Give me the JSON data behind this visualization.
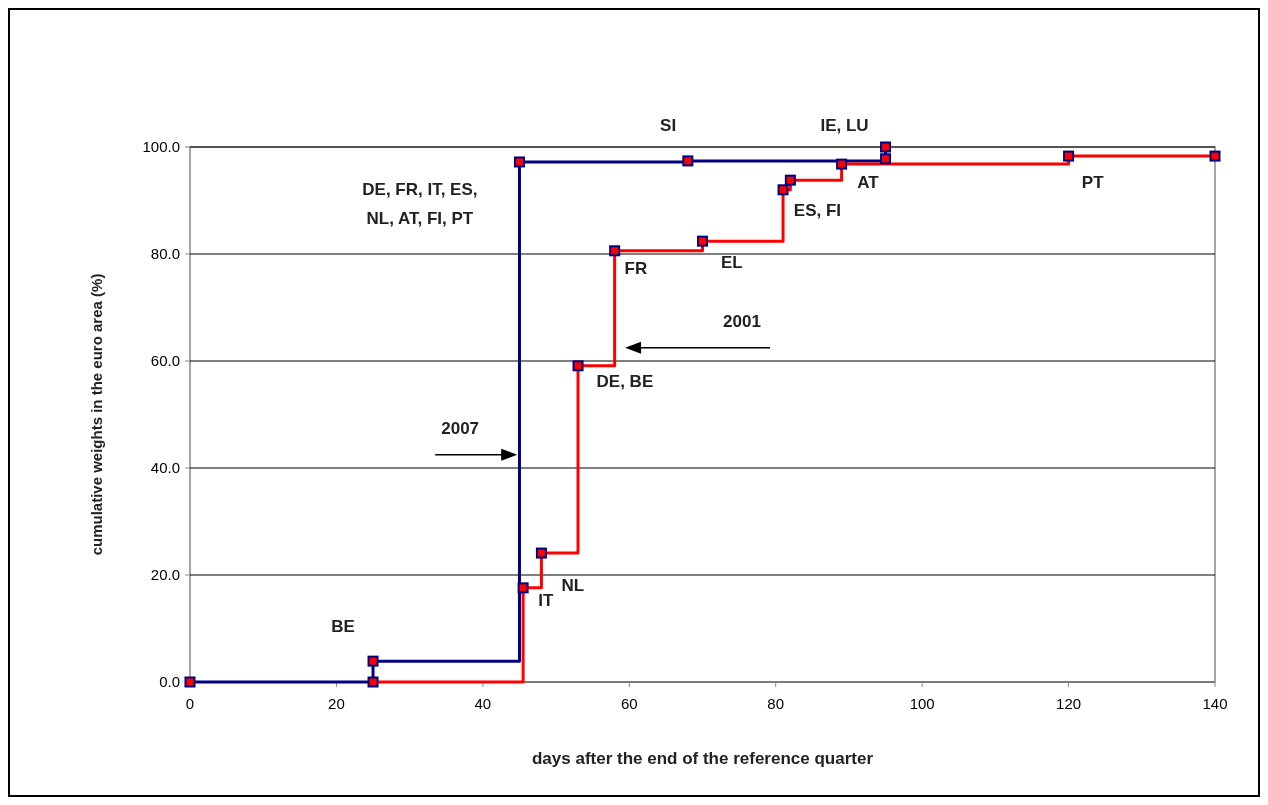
{
  "chart_data": {
    "type": "step",
    "xlabel": "days after the end of the reference quarter",
    "ylabel": "cumulative weights in the euro area (%)",
    "xlim": [
      0,
      140
    ],
    "xticks": [
      0,
      20,
      40,
      60,
      80,
      100,
      120,
      140
    ],
    "ylim": [
      0,
      100
    ],
    "yticks": [
      {
        "value": 0,
        "label": "0.0"
      },
      {
        "value": 20,
        "label": "20.0"
      },
      {
        "value": 40,
        "label": "40.0"
      },
      {
        "value": 60,
        "label": "60.0"
      },
      {
        "value": 80,
        "label": "80.0"
      },
      {
        "value": 100,
        "label": "100.0"
      }
    ],
    "grid": "y",
    "marker": "square",
    "line_style": "solid",
    "series": [
      {
        "color": "#000080",
        "x": [
          0,
          25,
          45,
          68,
          95,
          95
        ],
        "values": [
          0,
          3.9,
          97.2,
          97.4,
          97.8,
          100
        ]
      },
      {
        "color": "#ff0000",
        "x": [
          25,
          45.5,
          48,
          53,
          58,
          70,
          81,
          82,
          89,
          120,
          140
        ],
        "values": [
          0,
          17.6,
          24.1,
          59.1,
          80.6,
          82.4,
          92.0,
          93.8,
          96.8,
          98.3,
          98.3
        ]
      }
    ],
    "annotations": [
      "BE",
      "IT",
      "NL",
      "DE, BE",
      "FR",
      "EL",
      "ES, FI",
      "AT",
      "PT",
      "SI",
      "IE, LU",
      "2001",
      "2007",
      "DE, FR, IT, ES,\nNL, AT, FI, PT"
    ]
  }
}
